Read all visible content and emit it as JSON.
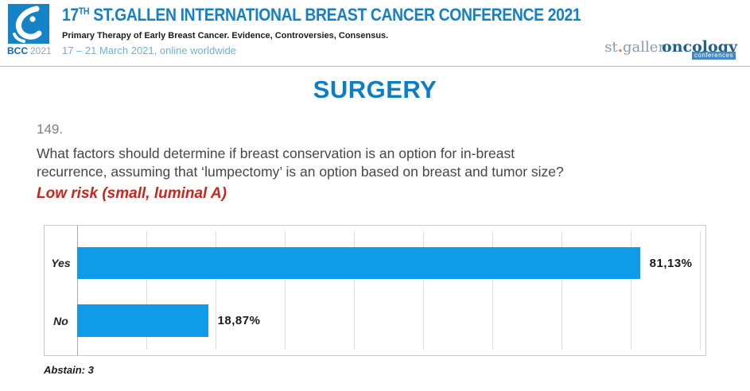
{
  "header": {
    "logo_caption": {
      "bcc": "BCC",
      "year": "2021"
    },
    "title": {
      "number": "17",
      "ordinal": "TH",
      "rest": " ST.GALLEN INTERNATIONAL BREAST CANCER CONFERENCE 2021"
    },
    "subtitle": "Primary Therapy of Early Breast Cancer. Evidence, Controversies, Consensus.",
    "dates": "17 – 21 March 2021, online worldwide",
    "brand": {
      "part1": "st",
      "dot": ".",
      "part2": "gallen",
      "part3": "oncology",
      "badge": "conferences"
    }
  },
  "main": {
    "section_title": "SURGERY",
    "question_number": "149.",
    "question_line1": "What factors should determine if breast conservation is an option for in-breast",
    "question_line2": "recurrence, assuming that ‘lumpectomy’ is an option based on breast and tumor size?",
    "question_highlight": "Low risk (small, luminal A)"
  },
  "chart_data": {
    "type": "bar",
    "orientation": "horizontal",
    "title": "",
    "categories": [
      "Yes",
      "No"
    ],
    "values": [
      81.13,
      18.87
    ],
    "value_labels": [
      "81,13%",
      "18,87%"
    ],
    "xlim": [
      0,
      90.8
    ],
    "gridline_step": 10,
    "grid": true,
    "bar_color": "#0f9be8",
    "note": "Abstain: 3"
  },
  "colors": {
    "title_blue": "#1480c5",
    "section_blue": "#0d7ec6",
    "dates_blue": "#6fb0d8",
    "highlight_red": "#c9261d",
    "bar_blue": "#0f9be8",
    "logo_blue": "#1583c5"
  }
}
